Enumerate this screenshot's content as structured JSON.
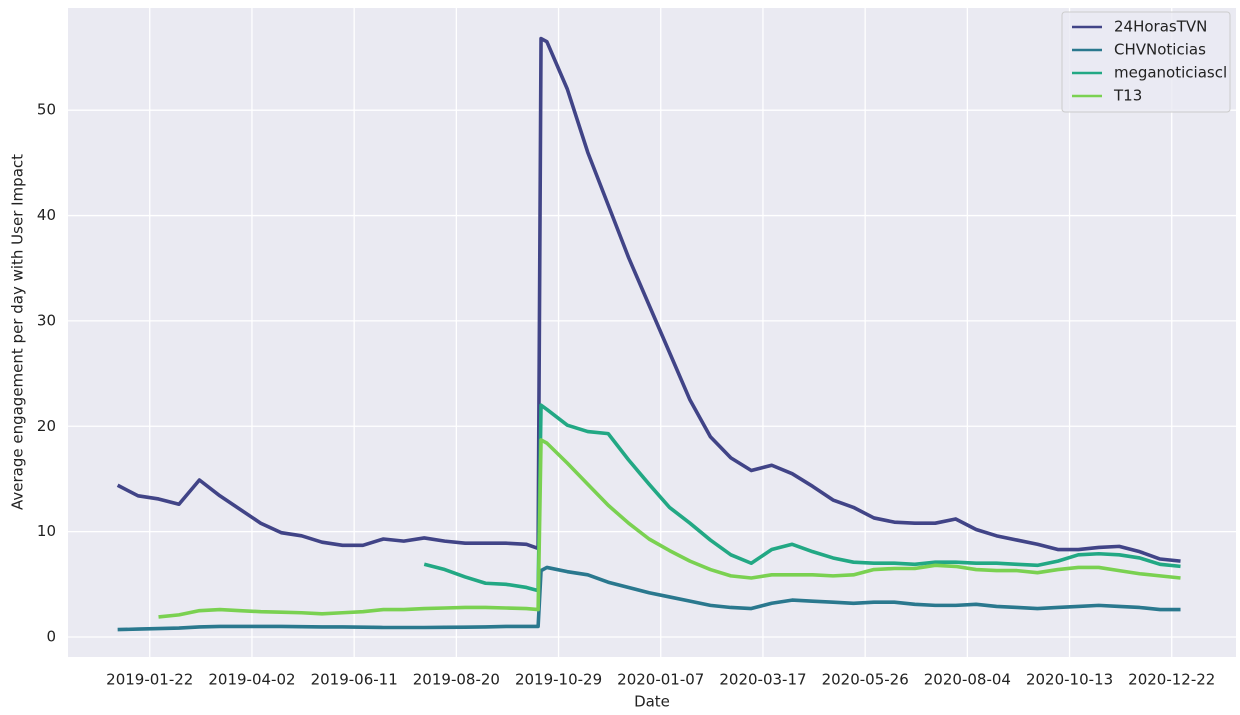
{
  "chart_data": {
    "type": "line",
    "xlabel": "Date",
    "ylabel": "Average engagement per day with User Impact",
    "x": [
      "2018-12-31",
      "2019-01-14",
      "2019-01-28",
      "2019-02-11",
      "2019-02-25",
      "2019-03-11",
      "2019-03-25",
      "2019-04-08",
      "2019-04-22",
      "2019-05-06",
      "2019-05-20",
      "2019-06-03",
      "2019-06-17",
      "2019-07-01",
      "2019-07-15",
      "2019-07-29",
      "2019-08-12",
      "2019-08-26",
      "2019-09-09",
      "2019-09-23",
      "2019-10-07",
      "2019-10-15",
      "2019-10-17",
      "2019-10-21",
      "2019-11-04",
      "2019-11-18",
      "2019-12-02",
      "2019-12-16",
      "2019-12-30",
      "2020-01-13",
      "2020-01-27",
      "2020-02-10",
      "2020-02-24",
      "2020-03-09",
      "2020-03-23",
      "2020-04-06",
      "2020-04-20",
      "2020-05-04",
      "2020-05-18",
      "2020-06-01",
      "2020-06-15",
      "2020-06-29",
      "2020-07-13",
      "2020-07-27",
      "2020-08-10",
      "2020-08-24",
      "2020-09-07",
      "2020-09-21",
      "2020-10-05",
      "2020-10-19",
      "2020-11-02",
      "2020-11-16",
      "2020-11-30",
      "2020-12-14",
      "2020-12-28"
    ],
    "series": [
      {
        "name": "24HorasTVN",
        "color": "#414487",
        "values": [
          14.4,
          13.4,
          13.1,
          12.6,
          14.9,
          13.4,
          12.1,
          10.8,
          9.9,
          9.6,
          9.0,
          8.7,
          8.7,
          9.3,
          9.1,
          9.4,
          9.1,
          8.9,
          8.9,
          8.9,
          8.8,
          8.4,
          56.8,
          56.5,
          52,
          46,
          41,
          36,
          31.5,
          27,
          22.5,
          19,
          17,
          15.8,
          16.3,
          15.5,
          14.3,
          13.0,
          12.3,
          11.3,
          10.9,
          10.8,
          10.8,
          11.2,
          10.2,
          9.6,
          9.2,
          8.8,
          8.3,
          8.3,
          8.5,
          8.6,
          8.1,
          7.4,
          7.2
        ]
      },
      {
        "name": "CHVNoticias",
        "color": "#2a788e",
        "values": [
          0.7,
          0.75,
          0.8,
          0.85,
          0.95,
          1.0,
          1.0,
          1.0,
          1.0,
          0.98,
          0.95,
          0.95,
          0.93,
          0.9,
          0.9,
          0.9,
          0.92,
          0.93,
          0.95,
          1.0,
          1.0,
          1.0,
          6.3,
          6.6,
          6.2,
          5.9,
          5.2,
          4.7,
          4.2,
          3.8,
          3.4,
          3.0,
          2.8,
          2.7,
          3.2,
          3.5,
          3.4,
          3.3,
          3.2,
          3.3,
          3.3,
          3.1,
          3.0,
          3.0,
          3.1,
          2.9,
          2.8,
          2.7,
          2.8,
          2.9,
          3.0,
          2.9,
          2.8,
          2.6,
          2.6
        ]
      },
      {
        "name": "meganoticiascl",
        "color": "#22a884",
        "values": [
          null,
          null,
          null,
          null,
          null,
          null,
          null,
          null,
          null,
          null,
          null,
          null,
          null,
          null,
          null,
          6.9,
          6.4,
          5.7,
          5.1,
          5.0,
          4.7,
          4.4,
          22.0,
          21.6,
          20.1,
          19.5,
          19.3,
          16.8,
          14.5,
          12.3,
          10.8,
          9.2,
          7.8,
          7.0,
          8.3,
          8.8,
          8.1,
          7.5,
          7.1,
          7.0,
          7.0,
          6.9,
          7.1,
          7.1,
          7.0,
          7.0,
          6.9,
          6.8,
          7.2,
          7.8,
          7.9,
          7.8,
          7.5,
          6.9,
          6.7
        ]
      },
      {
        "name": "T13",
        "color": "#7ad151",
        "values": [
          null,
          null,
          1.9,
          2.1,
          2.5,
          2.6,
          2.5,
          2.4,
          2.35,
          2.3,
          2.2,
          2.3,
          2.4,
          2.6,
          2.6,
          2.7,
          2.75,
          2.8,
          2.8,
          2.75,
          2.7,
          2.6,
          18.7,
          18.4,
          16.5,
          14.5,
          12.5,
          10.8,
          9.3,
          8.2,
          7.2,
          6.4,
          5.8,
          5.6,
          5.9,
          5.9,
          5.9,
          5.8,
          5.9,
          6.4,
          6.5,
          6.5,
          6.8,
          6.7,
          6.4,
          6.3,
          6.3,
          6.1,
          6.4,
          6.6,
          6.6,
          6.3,
          6.0,
          5.8,
          5.6
        ]
      }
    ],
    "xlim": [
      "2018-11-27",
      "2021-02-04"
    ],
    "xticks": [
      "2019-01-22",
      "2019-04-02",
      "2019-06-11",
      "2019-08-20",
      "2019-10-29",
      "2020-01-07",
      "2020-03-17",
      "2020-05-26",
      "2020-08-04",
      "2020-10-13",
      "2020-12-22"
    ],
    "ylim": [
      -1.9,
      59.7
    ],
    "yticks": [
      0,
      10,
      20,
      30,
      40,
      50
    ],
    "grid": true,
    "legend": "upper right"
  }
}
